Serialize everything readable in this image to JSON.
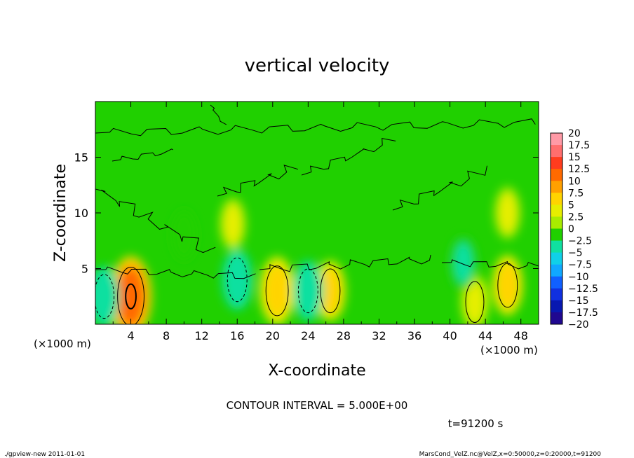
{
  "chart_data": {
    "type": "heatmap",
    "title": "vertical velocity",
    "xlabel": "X-coordinate",
    "ylabel": "Z-coordinate",
    "x_unit_left": "(×1000 m)",
    "x_unit_right": "(×1000 m)",
    "y_unit": "(×1000 m)",
    "xlim": [
      0,
      50
    ],
    "ylim": [
      0,
      20
    ],
    "x_ticks": [
      4,
      8,
      12,
      16,
      20,
      24,
      28,
      32,
      36,
      40,
      44,
      48
    ],
    "y_ticks": [
      5,
      10,
      15
    ],
    "grid": false,
    "contour_interval_label": "CONTOUR INTERVAL = 5.000E+00",
    "time_label": "t=91200 s",
    "colorbar": {
      "position": "right",
      "levels": [
        20,
        17.5,
        15,
        12.5,
        10,
        7.5,
        5,
        2.5,
        0,
        -2.5,
        -5,
        -7.5,
        -10,
        -12.5,
        -15,
        -17.5,
        -20
      ],
      "level_labels": [
        "20",
        "17.5",
        "15",
        "12.5",
        "10",
        "7.5",
        "5",
        "2.5",
        "0",
        "−2.5",
        "−5",
        "−7.5",
        "−10",
        "−12.5",
        "−15",
        "−17.5",
        "−20"
      ],
      "colors": [
        "#ff9aa6",
        "#ff6e6e",
        "#ff3c1e",
        "#ff6a00",
        "#ffa000",
        "#ffd400",
        "#e6ee00",
        "#a8ec00",
        "#20d000",
        "#10e0a0",
        "#10d0e8",
        "#10a8ff",
        "#1060ff",
        "#1030e0",
        "#0818b0",
        "#200890"
      ]
    },
    "features": [
      {
        "x": 4,
        "z": 2.5,
        "value": 10,
        "kind": "updraft"
      },
      {
        "x": 20.5,
        "z": 3,
        "value": 7,
        "kind": "updraft"
      },
      {
        "x": 26.5,
        "z": 3,
        "value": 5,
        "kind": "updraft"
      },
      {
        "x": 46.5,
        "z": 3.5,
        "value": 5,
        "kind": "updraft"
      },
      {
        "x": 42.8,
        "z": 2,
        "value": 4,
        "kind": "updraft"
      },
      {
        "x": 15.5,
        "z": 9,
        "value": 3,
        "kind": "updraft"
      },
      {
        "x": 46.5,
        "z": 10,
        "value": 3,
        "kind": "updraft"
      },
      {
        "x": 1,
        "z": 2.5,
        "value": -5,
        "kind": "downdraft"
      },
      {
        "x": 16,
        "z": 4,
        "value": -5,
        "kind": "downdraft"
      },
      {
        "x": 24,
        "z": 3,
        "value": -5,
        "kind": "downdraft"
      },
      {
        "x": 41.5,
        "z": 5.5,
        "value": -3.5,
        "kind": "downdraft"
      },
      {
        "x": 10,
        "z": 8,
        "value": -2.5,
        "kind": "downdraft"
      }
    ]
  },
  "footer": {
    "left": "./gpview-new  2011-01-01",
    "right": "MarsCond_VelZ.nc@VelZ,x=0:50000,z=0:20000,t=91200"
  }
}
